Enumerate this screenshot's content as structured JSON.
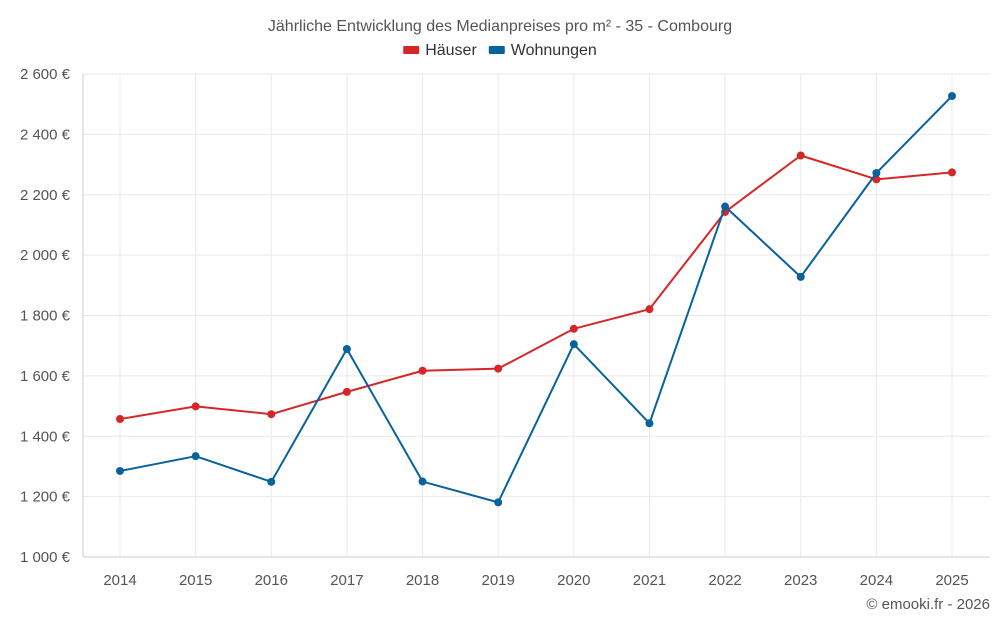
{
  "chart_data": {
    "type": "line",
    "title": "Jährliche Entwicklung des Medianpreises pro m² - 35 - Combourg",
    "categories": [
      "2014",
      "2015",
      "2016",
      "2017",
      "2018",
      "2019",
      "2020",
      "2021",
      "2022",
      "2023",
      "2024",
      "2025"
    ],
    "series": [
      {
        "name": "Häuser",
        "color": "#d62728",
        "values": [
          1457,
          1499,
          1473,
          1547,
          1617,
          1624,
          1756,
          1821,
          2143,
          2330,
          2251,
          2274
        ]
      },
      {
        "name": "Wohnungen",
        "color": "#08629c",
        "values": [
          1285,
          1334,
          1249,
          1689,
          1250,
          1181,
          1705,
          1443,
          2161,
          1928,
          2272,
          2527
        ]
      }
    ],
    "ylim": [
      1000,
      2600
    ],
    "yticks": [
      1000,
      1200,
      1400,
      1600,
      1800,
      2000,
      2200,
      2400,
      2600
    ],
    "ytick_labels": [
      "1 000 €",
      "1 200 €",
      "1 400 €",
      "1 600 €",
      "1 800 €",
      "2 000 €",
      "2 200 €",
      "2 400 €",
      "2 600 €"
    ],
    "xlabel": "",
    "ylabel": "",
    "grid": true,
    "legend_position": "top-center"
  },
  "credit": "© emooki.fr - 2026"
}
